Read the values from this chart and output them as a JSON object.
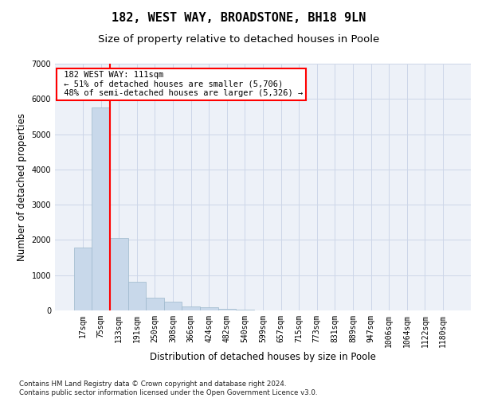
{
  "title": "182, WEST WAY, BROADSTONE, BH18 9LN",
  "subtitle": "Size of property relative to detached houses in Poole",
  "xlabel": "Distribution of detached houses by size in Poole",
  "ylabel": "Number of detached properties",
  "bar_labels": [
    "17sqm",
    "75sqm",
    "133sqm",
    "191sqm",
    "250sqm",
    "308sqm",
    "366sqm",
    "424sqm",
    "482sqm",
    "540sqm",
    "599sqm",
    "657sqm",
    "715sqm",
    "773sqm",
    "831sqm",
    "889sqm",
    "947sqm",
    "1006sqm",
    "1064sqm",
    "1122sqm",
    "1180sqm"
  ],
  "bar_values": [
    1780,
    5750,
    2060,
    820,
    370,
    240,
    110,
    80,
    50,
    30,
    10,
    5,
    3,
    2,
    1,
    1,
    0,
    0,
    0,
    0,
    0
  ],
  "bar_color": "#c8d8ea",
  "bar_edge_color": "#9db8cc",
  "property_label": "182 WEST WAY: 111sqm",
  "pct_smaller": 51,
  "n_smaller": 5706,
  "pct_larger_semi": 48,
  "n_larger_semi": 5326,
  "vline_x": 1.5,
  "annotation_box_color": "white",
  "annotation_box_edge_color": "red",
  "vline_color": "red",
  "grid_color": "#ccd6e8",
  "background_color": "#edf1f8",
  "title_fontsize": 11,
  "subtitle_fontsize": 9.5,
  "axis_label_fontsize": 8.5,
  "tick_fontsize": 7,
  "annotation_fontsize": 7.5,
  "footer_text": "Contains HM Land Registry data © Crown copyright and database right 2024.\nContains public sector information licensed under the Open Government Licence v3.0.",
  "ylim": [
    0,
    7000
  ],
  "yticks": [
    0,
    1000,
    2000,
    3000,
    4000,
    5000,
    6000,
    7000
  ]
}
